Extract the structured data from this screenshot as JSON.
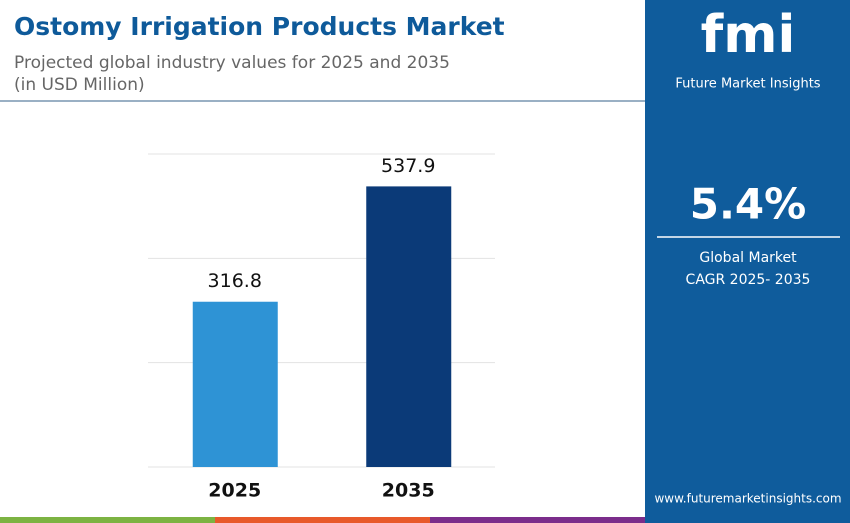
{
  "chart_data": {
    "type": "bar",
    "title": "Ostomy Irrigation Products Market",
    "subtitle": "Projected global industry values for 2025 and 2035",
    "unit_note": "(in USD Million)",
    "categories": [
      "2025",
      "2035"
    ],
    "values": [
      316.8,
      537.9
    ],
    "colors": [
      "#2e93d5",
      "#0b3a78"
    ],
    "ylim": [
      0,
      600
    ],
    "yticks": [
      0,
      200,
      400,
      600
    ],
    "grid": true
  },
  "sidebar": {
    "logo": "fmi",
    "brand": "Future Market Insights",
    "cagr": "5.4%",
    "cagr_label_1": "Global Market",
    "cagr_label_2": "CAGR 2025- 2035",
    "website": "www.futuremarketinsights.com"
  }
}
